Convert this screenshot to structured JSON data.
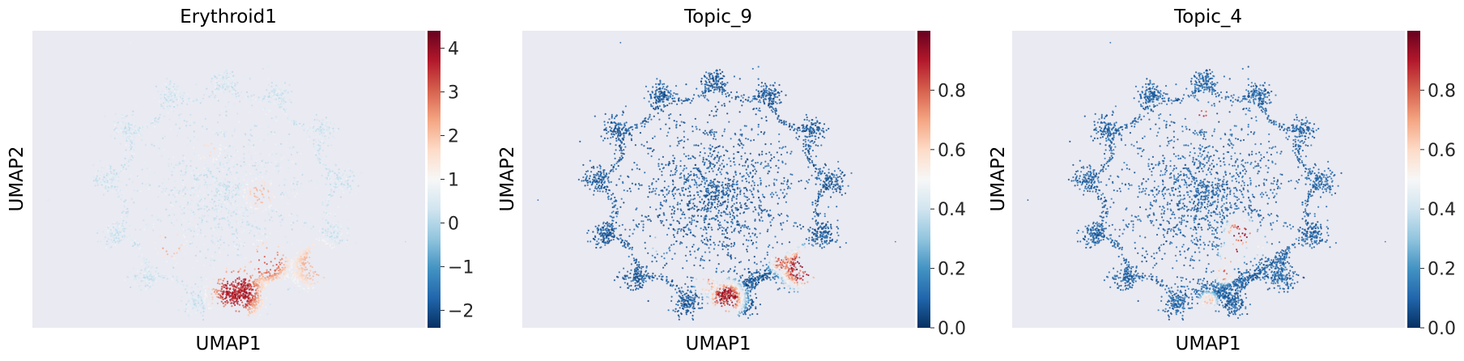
{
  "chart_data": [
    {
      "type": "scatter",
      "title": "Erythroid1",
      "xlabel": "UMAP1",
      "ylabel": "UMAP2",
      "colormap": "RdBu_r",
      "colorbar": {
        "range": [
          -2.4,
          4.4
        ],
        "ticks": [
          -2,
          -1,
          0,
          1,
          2,
          3,
          4
        ],
        "tick_labels": [
          "−2",
          "−1",
          "0",
          "1",
          "2",
          "3",
          "4"
        ]
      },
      "background_level": 0.42,
      "hotspots": [
        {
          "u": 0.52,
          "v": 0.88,
          "r": 0.09,
          "level": 0.95
        },
        {
          "u": 0.6,
          "v": 0.78,
          "r": 0.07,
          "level": 0.85
        },
        {
          "u": 0.72,
          "v": 0.79,
          "r": 0.08,
          "level": 0.7
        },
        {
          "u": 0.35,
          "v": 0.72,
          "r": 0.05,
          "level": 0.75
        },
        {
          "u": 0.58,
          "v": 0.55,
          "r": 0.05,
          "level": 0.7
        },
        {
          "u": 0.45,
          "v": 0.4,
          "r": 0.04,
          "level": 0.62
        }
      ]
    },
    {
      "type": "scatter",
      "title": "Topic_9",
      "xlabel": "UMAP1",
      "ylabel": "UMAP2",
      "colormap": "RdBu_r",
      "colorbar": {
        "range": [
          0.0,
          1.0
        ],
        "ticks": [
          0.0,
          0.2,
          0.4,
          0.6,
          0.8
        ],
        "tick_labels": [
          "0.0",
          "0.2",
          "0.4",
          "0.6",
          "0.8"
        ]
      },
      "background_level": 0.08,
      "hotspots": [
        {
          "u": 0.52,
          "v": 0.9,
          "r": 0.06,
          "level": 1.0
        },
        {
          "u": 0.71,
          "v": 0.8,
          "r": 0.07,
          "level": 1.0
        },
        {
          "u": 0.66,
          "v": 0.78,
          "r": 0.04,
          "level": 0.85
        },
        {
          "u": 0.47,
          "v": 0.85,
          "r": 0.04,
          "level": 0.75
        },
        {
          "u": 0.35,
          "v": 0.72,
          "r": 0.03,
          "level": 0.55
        }
      ]
    },
    {
      "type": "scatter",
      "title": "Topic_4",
      "xlabel": "UMAP1",
      "ylabel": "UMAP2",
      "colormap": "RdBu_r",
      "colorbar": {
        "range": [
          0.0,
          1.0
        ],
        "ticks": [
          0.0,
          0.2,
          0.4,
          0.6,
          0.8
        ],
        "tick_labels": [
          "0.0",
          "0.2",
          "0.4",
          "0.6",
          "0.8"
        ]
      },
      "background_level": 0.1,
      "hotspots": [
        {
          "u": 0.58,
          "v": 0.68,
          "r": 0.05,
          "level": 1.0
        },
        {
          "u": 0.56,
          "v": 0.75,
          "r": 0.04,
          "level": 0.95
        },
        {
          "u": 0.54,
          "v": 0.82,
          "r": 0.03,
          "level": 0.9
        },
        {
          "u": 0.5,
          "v": 0.91,
          "r": 0.03,
          "level": 0.7
        },
        {
          "u": 0.48,
          "v": 0.28,
          "r": 0.03,
          "level": 1.0
        },
        {
          "u": 0.62,
          "v": 0.72,
          "r": 0.04,
          "level": 0.6
        }
      ]
    }
  ],
  "colors": {
    "axes_background": "#eaeaf2",
    "text": "#262626",
    "colormap_stops": [
      "#053061",
      "#2166ac",
      "#4393c3",
      "#92c5de",
      "#d1e5f0",
      "#f7f7f7",
      "#fddbc7",
      "#f4a582",
      "#d6604d",
      "#b2182b",
      "#67001f"
    ]
  }
}
